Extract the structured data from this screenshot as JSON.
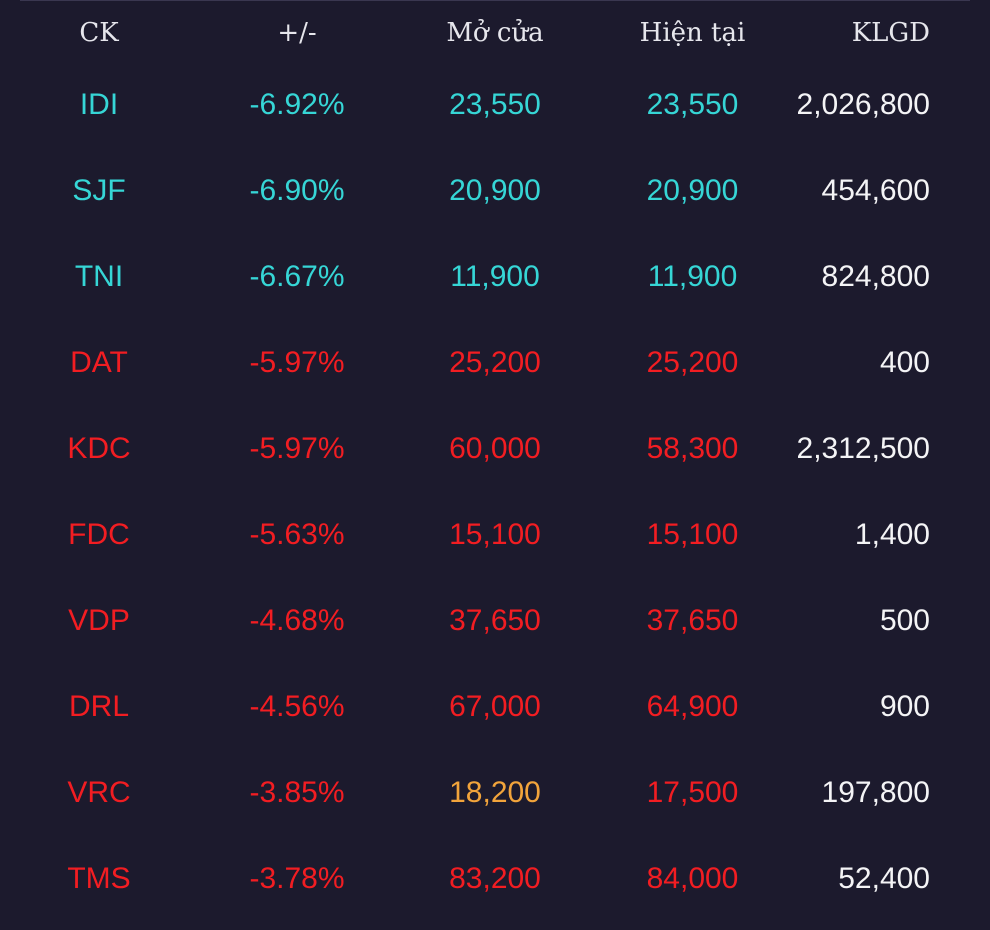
{
  "colors": {
    "background": "#1c1a2d",
    "floor": "#36d6d6",
    "down": "#f21d22",
    "reference": "#f2a43b",
    "volume": "#f4f4f6"
  },
  "headers": {
    "symbol": "CK",
    "change": "+/-",
    "open": "Mở cửa",
    "current": "Hiện tại",
    "volume": "KLGD"
  },
  "rows": [
    {
      "symbol": "IDI",
      "change": "-6.92%",
      "open": "23,550",
      "current": "23,550",
      "volume": "2,026,800"
    },
    {
      "symbol": "SJF",
      "change": "-6.90%",
      "open": "20,900",
      "current": "20,900",
      "volume": "454,600"
    },
    {
      "symbol": "TNI",
      "change": "-6.67%",
      "open": "11,900",
      "current": "11,900",
      "volume": "824,800"
    },
    {
      "symbol": "DAT",
      "change": "-5.97%",
      "open": "25,200",
      "current": "25,200",
      "volume": "400"
    },
    {
      "symbol": "KDC",
      "change": "-5.97%",
      "open": "60,000",
      "current": "58,300",
      "volume": "2,312,500"
    },
    {
      "symbol": "FDC",
      "change": "-5.63%",
      "open": "15,100",
      "current": "15,100",
      "volume": "1,400"
    },
    {
      "symbol": "VDP",
      "change": "-4.68%",
      "open": "37,650",
      "current": "37,650",
      "volume": "500"
    },
    {
      "symbol": "DRL",
      "change": "-4.56%",
      "open": "67,000",
      "current": "64,900",
      "volume": "900"
    },
    {
      "symbol": "VRC",
      "change": "-3.85%",
      "open": "18,200",
      "current": "17,500",
      "volume": "197,800"
    },
    {
      "symbol": "TMS",
      "change": "-3.78%",
      "open": "83,200",
      "current": "84,000",
      "volume": "52,400"
    }
  ]
}
